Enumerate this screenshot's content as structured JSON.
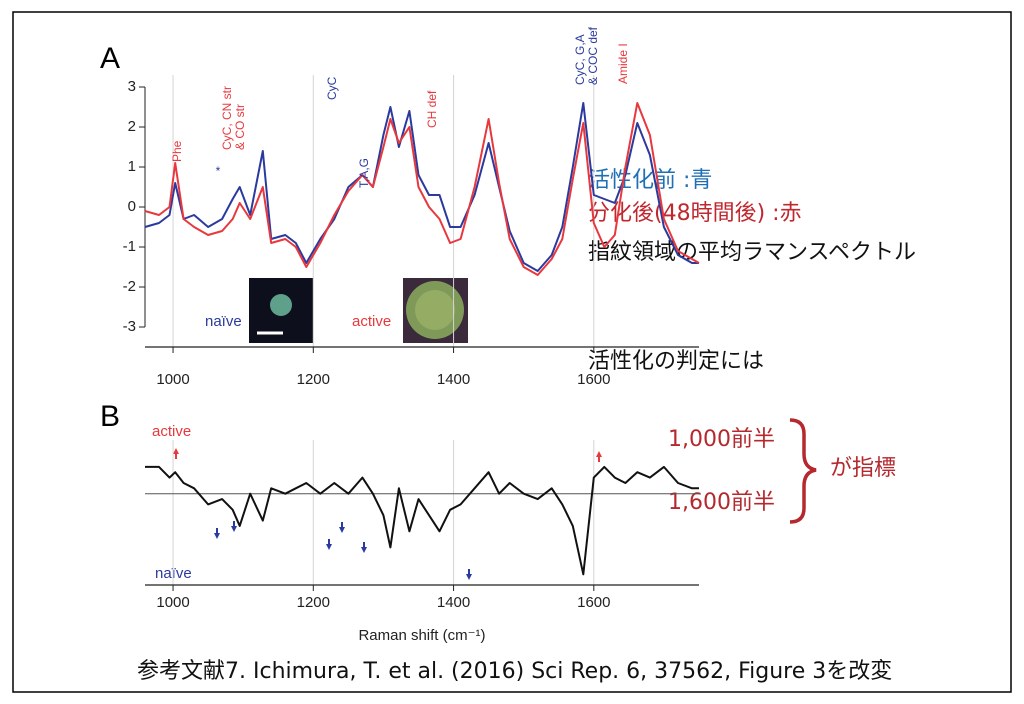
{
  "chart_data": [
    {
      "type": "line",
      "panel": "A",
      "x": [
        960,
        980,
        995,
        1003,
        1015,
        1030,
        1050,
        1070,
        1085,
        1095,
        1110,
        1128,
        1140,
        1160,
        1175,
        1190,
        1210,
        1230,
        1250,
        1270,
        1285,
        1300,
        1310,
        1322,
        1337,
        1350,
        1365,
        1380,
        1395,
        1410,
        1430,
        1450,
        1465,
        1480,
        1500,
        1520,
        1540,
        1555,
        1570,
        1585,
        1600,
        1615,
        1630,
        1645,
        1662,
        1680,
        1700,
        1720,
        1740,
        1750
      ],
      "series": [
        {
          "name": "naïve",
          "color": "#2b3a9e",
          "values": [
            -0.5,
            -0.4,
            -0.2,
            0.6,
            -0.3,
            -0.2,
            -0.5,
            -0.3,
            0.2,
            0.5,
            -0.2,
            1.4,
            -0.8,
            -0.7,
            -0.9,
            -1.4,
            -0.8,
            -0.3,
            0.5,
            0.8,
            0.5,
            1.8,
            2.5,
            1.5,
            2.4,
            0.8,
            0.3,
            0.3,
            -0.5,
            -0.5,
            0.3,
            1.6,
            0.5,
            -0.6,
            -1.4,
            -1.6,
            -1.2,
            -0.5,
            1.0,
            2.6,
            0.3,
            0.2,
            0.1,
            0.8,
            2.1,
            1.3,
            -0.5,
            -1.2,
            -1.4,
            -1.4
          ]
        },
        {
          "name": "active",
          "color": "#e8383d",
          "values": [
            -0.1,
            -0.2,
            0.0,
            1.1,
            -0.3,
            -0.5,
            -0.7,
            -0.6,
            -0.3,
            0.1,
            -0.3,
            0.5,
            -0.9,
            -0.8,
            -1.0,
            -1.5,
            -0.9,
            -0.2,
            0.4,
            0.8,
            0.5,
            1.5,
            2.2,
            1.6,
            2.0,
            0.5,
            0.0,
            -0.3,
            -0.9,
            -0.8,
            0.5,
            2.2,
            0.6,
            -0.8,
            -1.5,
            -1.7,
            -1.3,
            -0.8,
            0.7,
            2.1,
            -0.4,
            -1.0,
            -0.7,
            1.0,
            2.6,
            1.8,
            -0.3,
            -1.1,
            -1.3,
            -1.4
          ]
        }
      ],
      "xlim": [
        960,
        1750
      ],
      "xticks": [
        1000,
        1200,
        1400,
        1600
      ],
      "ylim": [
        -3.5,
        3.3
      ],
      "yticks": [
        -3,
        -2,
        -1,
        0,
        1,
        2,
        3
      ],
      "grid": true,
      "annotations": [
        {
          "lines": [
            "Phe"
          ],
          "color": "#e8383d"
        },
        {
          "lines": [
            "CyC, CN str",
            "& CO str"
          ],
          "color": "#e8383d"
        },
        {
          "lines": [
            "*"
          ],
          "color": "#2b3a9e"
        },
        {
          "lines": [
            "CyC"
          ],
          "color": "#2b3a9e"
        },
        {
          "lines": [
            "T,A,G"
          ],
          "color": "#2b3a9e"
        },
        {
          "lines": [
            "CH def"
          ],
          "color": "#e8383d"
        },
        {
          "lines": [
            "CyC, G,A",
            "& COC def"
          ],
          "color": "#2b3a9e"
        },
        {
          "lines": [
            "Amide I"
          ],
          "color": "#e8383d"
        }
      ]
    },
    {
      "type": "line",
      "panel": "B",
      "x": [
        960,
        980,
        995,
        1003,
        1015,
        1030,
        1050,
        1070,
        1085,
        1095,
        1110,
        1128,
        1140,
        1160,
        1175,
        1190,
        1210,
        1230,
        1250,
        1270,
        1285,
        1300,
        1310,
        1322,
        1337,
        1350,
        1365,
        1380,
        1395,
        1410,
        1430,
        1450,
        1465,
        1480,
        1500,
        1520,
        1540,
        1555,
        1570,
        1585,
        1600,
        1615,
        1630,
        1645,
        1662,
        1680,
        1700,
        1720,
        1740,
        1750
      ],
      "series": [
        {
          "color": "#111111",
          "values": [
            0.5,
            0.5,
            0.3,
            0.4,
            0.2,
            0.1,
            -0.2,
            -0.1,
            -0.3,
            -0.6,
            0.0,
            -0.5,
            0.1,
            0.0,
            0.1,
            0.2,
            0.0,
            0.2,
            0.0,
            0.3,
            0.0,
            -0.4,
            -1.0,
            0.1,
            -0.7,
            -0.1,
            -0.4,
            -0.7,
            -0.3,
            -0.2,
            0.1,
            0.4,
            0.0,
            0.2,
            0.0,
            -0.1,
            0.1,
            -0.2,
            -0.6,
            -1.5,
            0.3,
            0.5,
            0.3,
            0.2,
            0.4,
            0.3,
            0.5,
            0.2,
            0.1,
            0.1
          ]
        }
      ],
      "xlim": [
        960,
        1750
      ],
      "xticks": [
        1000,
        1200,
        1400,
        1600
      ],
      "ylim": [
        -1.7,
        1
      ],
      "grid": true,
      "xlabel": "Raman shift (cm⁻¹)",
      "up_label": "active",
      "down_label": "naïve"
    }
  ],
  "notes": {
    "before": "活性化前 :青",
    "after": "分化後(48時間後) :赤",
    "caption": "指紋領域の平均ラマンスペクトル",
    "criterion": "活性化の判定には",
    "range1": "1,000前半",
    "range2": "1,600前半",
    "indicator": "が指標"
  },
  "reference": "参考文献7. Ichimura, T. et al. (2016) Sci Rep. 6, 37562, Figure 3を改変"
}
